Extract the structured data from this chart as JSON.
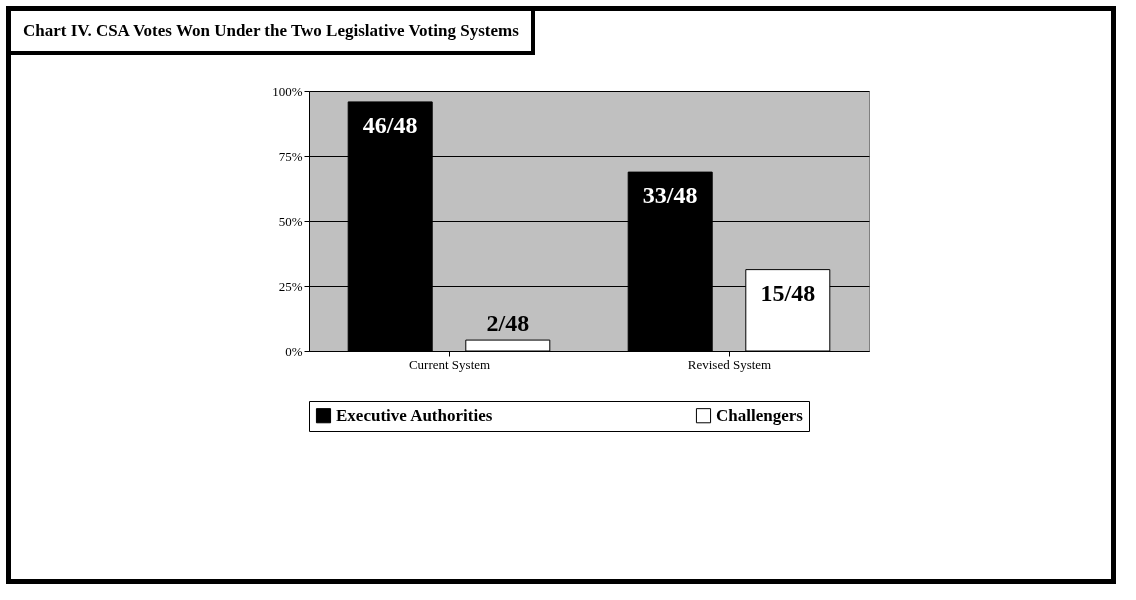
{
  "chart_data": {
    "type": "bar",
    "title": "Chart IV. CSA Votes Won Under the Two Legislative Voting Systems",
    "categories": [
      "Current System",
      "Revised System"
    ],
    "series": [
      {
        "name": "Executive Authorities",
        "color": "#000000",
        "values": [
          95.8,
          68.8
        ],
        "value_labels": [
          "46/48",
          "33/48"
        ]
      },
      {
        "name": "Challengers",
        "color": "#ffffff",
        "values": [
          4.2,
          31.3
        ],
        "value_labels": [
          "2/48",
          "15/48"
        ]
      }
    ],
    "ylim": [
      0,
      100
    ],
    "yticks": [
      {
        "value": 0,
        "label": "0%"
      },
      {
        "value": 25,
        "label": "25%"
      },
      {
        "value": 50,
        "label": "50%"
      },
      {
        "value": 75,
        "label": "75%"
      },
      {
        "value": 100,
        "label": "100%"
      }
    ],
    "grid": "y",
    "legend": "bottom"
  }
}
